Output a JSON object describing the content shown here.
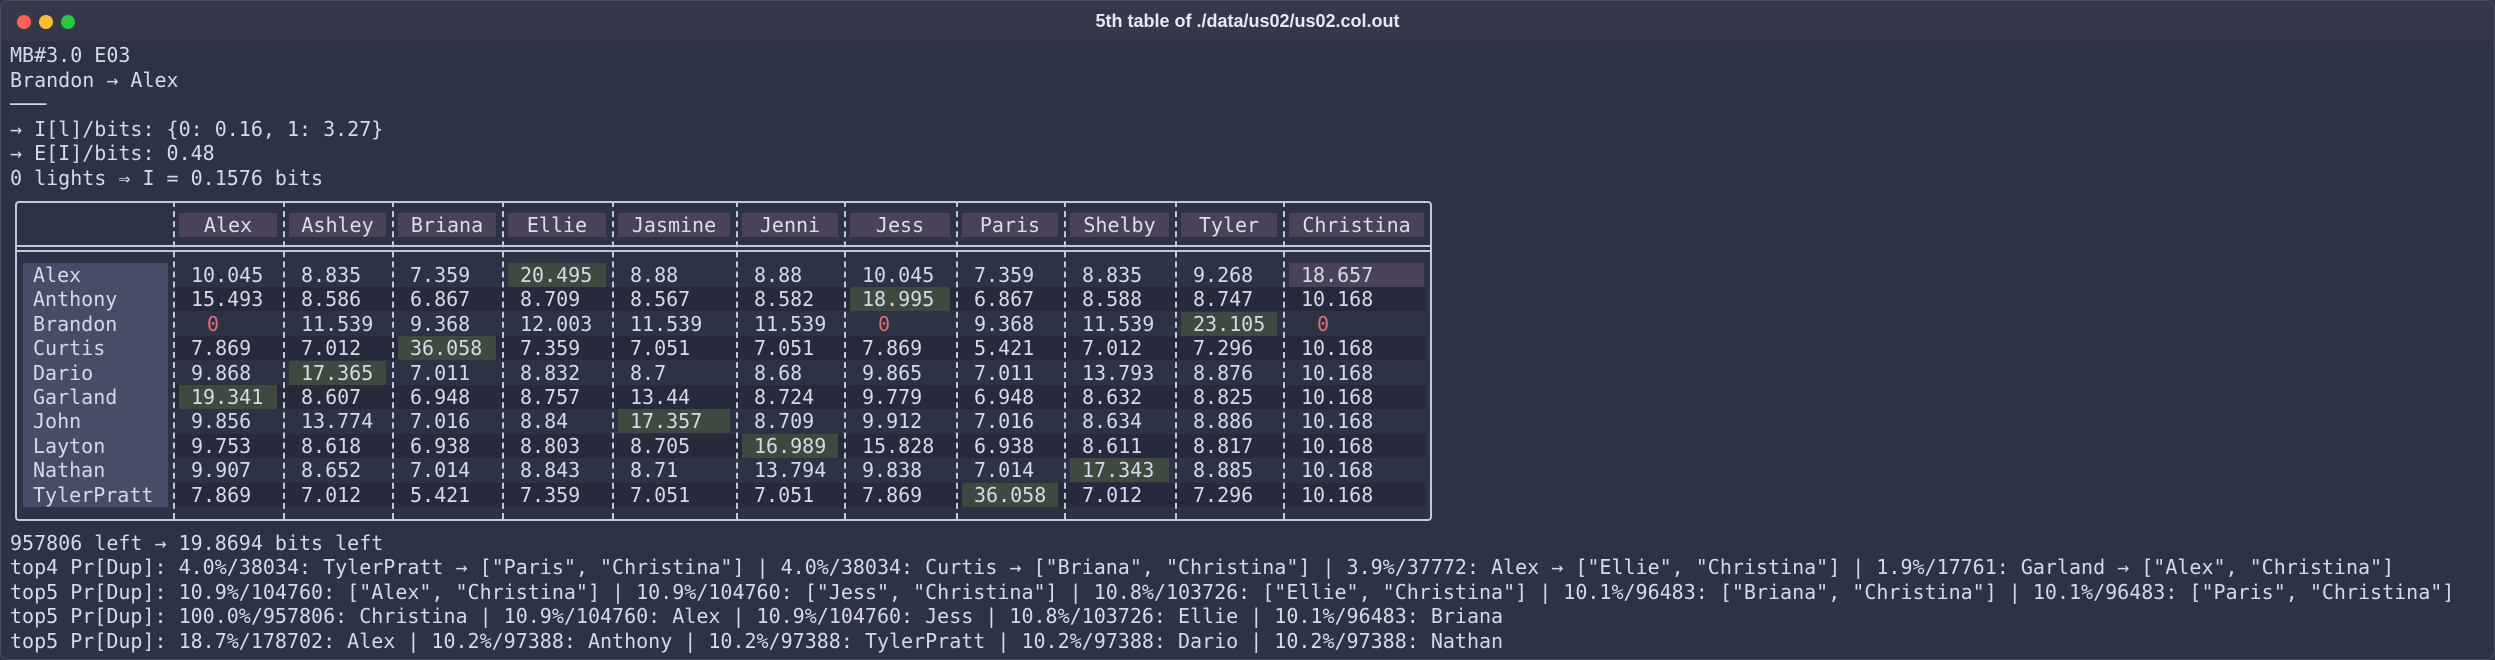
{
  "window": {
    "title": "5th table of ./data/us02/us02.col.out"
  },
  "header_lines": [
    "MB#3.0 E03",
    "Brandon → Alex",
    "───",
    "→ I[l]/bits: {0: 0.16, 1: 3.27}",
    "→ E[I]/bits: 0.48",
    "0 lights ⇒ I = 0.1576 bits"
  ],
  "table": {
    "columns": [
      "Alex",
      "Ashley",
      "Briana",
      "Ellie",
      "Jasmine",
      "Jenni",
      "Jess",
      "Paris",
      "Shelby",
      "Tyler",
      "Christina"
    ],
    "rows": [
      {
        "name": "Alex",
        "cells": [
          "10.045",
          "8.835",
          "7.359",
          "20.495",
          "8.88",
          "8.88",
          "10.045",
          "7.359",
          "8.835",
          "9.268",
          "18.657"
        ]
      },
      {
        "name": "Anthony",
        "cells": [
          "15.493",
          "8.586",
          "6.867",
          "8.709",
          "8.567",
          "8.582",
          "18.995",
          "6.867",
          "8.588",
          "8.747",
          "10.168"
        ]
      },
      {
        "name": "Brandon",
        "cells": [
          "0",
          "11.539",
          "9.368",
          "12.003",
          "11.539",
          "11.539",
          "0",
          "9.368",
          "11.539",
          "23.105",
          "0"
        ]
      },
      {
        "name": "Curtis",
        "cells": [
          "7.869",
          "7.012",
          "36.058",
          "7.359",
          "7.051",
          "7.051",
          "7.869",
          "5.421",
          "7.012",
          "7.296",
          "10.168"
        ]
      },
      {
        "name": "Dario",
        "cells": [
          "9.868",
          "17.365",
          "7.011",
          "8.832",
          "8.7",
          "8.68",
          "9.865",
          "7.011",
          "13.793",
          "8.876",
          "10.168"
        ]
      },
      {
        "name": "Garland",
        "cells": [
          "19.341",
          "8.607",
          "6.948",
          "8.757",
          "13.44",
          "8.724",
          "9.779",
          "6.948",
          "8.632",
          "8.825",
          "10.168"
        ]
      },
      {
        "name": "John",
        "cells": [
          "9.856",
          "13.774",
          "7.016",
          "8.84",
          "17.357",
          "8.709",
          "9.912",
          "7.016",
          "8.634",
          "8.886",
          "10.168"
        ]
      },
      {
        "name": "Layton",
        "cells": [
          "9.753",
          "8.618",
          "6.938",
          "8.803",
          "8.705",
          "16.989",
          "15.828",
          "6.938",
          "8.611",
          "8.817",
          "10.168"
        ]
      },
      {
        "name": "Nathan",
        "cells": [
          "9.907",
          "8.652",
          "7.014",
          "8.843",
          "8.71",
          "13.794",
          "9.838",
          "7.014",
          "17.343",
          "8.885",
          "10.168"
        ]
      },
      {
        "name": "TylerPratt",
        "cells": [
          "7.869",
          "7.012",
          "5.421",
          "7.359",
          "7.051",
          "7.051",
          "7.869",
          "36.058",
          "7.012",
          "7.296",
          "10.168"
        ]
      }
    ]
  },
  "footer_lines": [
    "957806 left → 19.8694 bits left",
    "top4 Pr[Dup]: 4.0%/38034: TylerPratt → [\"Paris\", \"Christina\"] | 4.0%/38034: Curtis → [\"Briana\", \"Christina\"] | 3.9%/37772: Alex → [\"Ellie\", \"Christina\"] | 1.9%/17761: Garland → [\"Alex\", \"Christina\"]",
    "top5 Pr[Dup]: 10.9%/104760: [\"Alex\", \"Christina\"] | 10.9%/104760: [\"Jess\", \"Christina\"] | 10.8%/103726: [\"Ellie\", \"Christina\"] | 10.1%/96483: [\"Briana\", \"Christina\"] | 10.1%/96483: [\"Paris\", \"Christina\"]",
    "top5 Pr[Dup]: 100.0%/957806: Christina | 10.9%/104760: Alex | 10.9%/104760: Jess | 10.8%/103726: Ellie | 10.1%/96483: Briana",
    "top5 Pr[Dup]: 18.7%/178702: Alex | 10.2%/97388: Anthony | 10.2%/97388: TylerPratt | 10.2%/97388: Dario | 10.2%/97388: Nathan"
  ]
}
